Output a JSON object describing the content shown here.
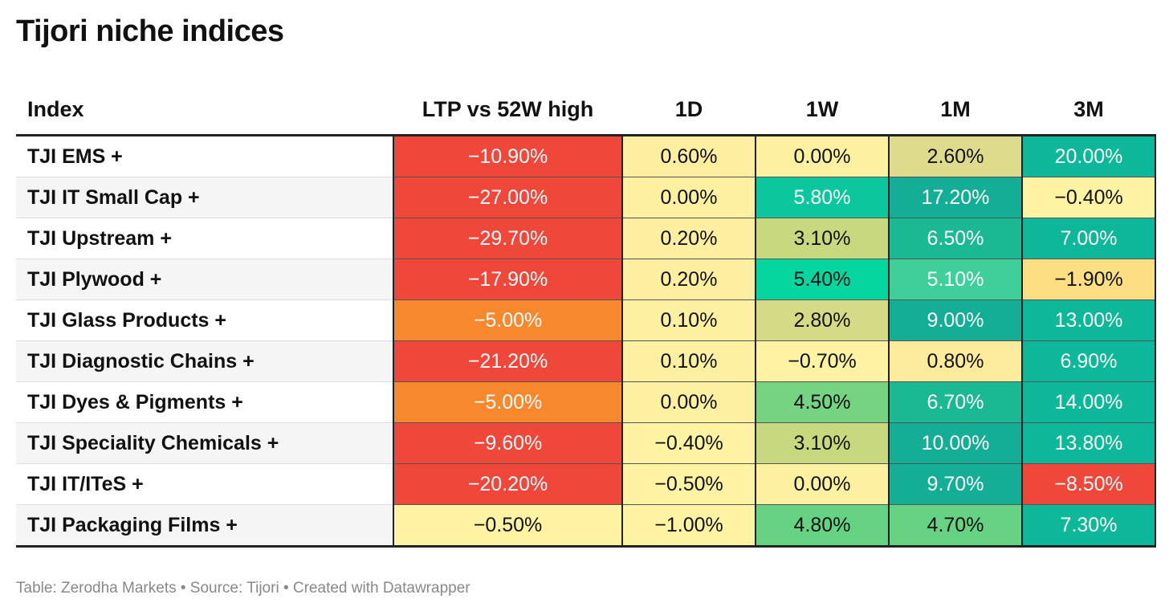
{
  "title": "Tijori niche indices",
  "footer": "Table: Zerodha Markets • Source: Tijori • Created with Datawrapper",
  "chart_data": {
    "type": "table",
    "title": "Tijori niche indices",
    "columns": [
      "Index",
      "LTP vs 52W high",
      "1D",
      "1W",
      "1M",
      "3M"
    ],
    "rows": [
      {
        "index": "TJI EMS +",
        "values": [
          "−10.90%",
          "0.60%",
          "0.00%",
          "2.60%",
          "20.00%"
        ]
      },
      {
        "index": "TJI IT Small Cap +",
        "values": [
          "−27.00%",
          "0.00%",
          "5.80%",
          "17.20%",
          "−0.40%"
        ]
      },
      {
        "index": "TJI Upstream +",
        "values": [
          "−29.70%",
          "0.20%",
          "3.10%",
          "6.50%",
          "7.00%"
        ]
      },
      {
        "index": "TJI Plywood +",
        "values": [
          "−17.90%",
          "0.20%",
          "5.40%",
          "5.10%",
          "−1.90%"
        ]
      },
      {
        "index": "TJI Glass Products +",
        "values": [
          "−5.00%",
          "0.10%",
          "2.80%",
          "9.00%",
          "13.00%"
        ]
      },
      {
        "index": "TJI Diagnostic Chains +",
        "values": [
          "−21.20%",
          "0.10%",
          "−0.70%",
          "0.80%",
          "6.90%"
        ]
      },
      {
        "index": "TJI Dyes & Pigments +",
        "values": [
          "−5.00%",
          "0.00%",
          "4.50%",
          "6.70%",
          "14.00%"
        ]
      },
      {
        "index": "TJI Speciality Chemicals +",
        "values": [
          "−9.60%",
          "−0.40%",
          "3.10%",
          "10.00%",
          "13.80%"
        ]
      },
      {
        "index": "TJI IT/ITeS +",
        "values": [
          "−20.20%",
          "−0.50%",
          "0.00%",
          "9.70%",
          "−8.50%"
        ]
      },
      {
        "index": "TJI Packaging Films +",
        "values": [
          "−0.50%",
          "−1.00%",
          "4.80%",
          "4.70%",
          "7.30%"
        ]
      }
    ],
    "cell_colors": [
      [
        "#ef473a",
        "#fdeea0",
        "#fdf0a0",
        "#dedc8c",
        "#0db89a"
      ],
      [
        "#ef473a",
        "#fdf0a0",
        "#0cc79d",
        "#13ae95",
        "#fdf3a3"
      ],
      [
        "#ef473a",
        "#fdef9f",
        "#c7d87e",
        "#1bb894",
        "#0db89a"
      ],
      [
        "#ef473a",
        "#fdef9f",
        "#05d6a0",
        "#3fd099",
        "#fdde82"
      ],
      [
        "#f8882e",
        "#fdf0a0",
        "#d5da87",
        "#13ae95",
        "#0db89a"
      ],
      [
        "#ef473a",
        "#fdf0a0",
        "#fdf3a3",
        "#fdeb9c",
        "#0db89a"
      ],
      [
        "#f8882e",
        "#fdf0a0",
        "#76d381",
        "#1bb894",
        "#0db89a"
      ],
      [
        "#ef473a",
        "#fdf3a3",
        "#c7d87e",
        "#13ae95",
        "#0db89a"
      ],
      [
        "#ef473a",
        "#fdf3a3",
        "#fdf0a0",
        "#13ae95",
        "#ef473a"
      ],
      [
        "#fdf3a3",
        "#fdf3a3",
        "#66d384",
        "#66d384",
        "#0db89a"
      ]
    ],
    "light_text": [
      [
        true,
        false,
        false,
        false,
        true
      ],
      [
        true,
        false,
        true,
        true,
        false
      ],
      [
        true,
        false,
        false,
        true,
        true
      ],
      [
        true,
        false,
        false,
        true,
        false
      ],
      [
        true,
        false,
        false,
        true,
        true
      ],
      [
        true,
        false,
        false,
        false,
        true
      ],
      [
        true,
        false,
        false,
        true,
        true
      ],
      [
        true,
        false,
        false,
        true,
        true
      ],
      [
        true,
        false,
        false,
        true,
        true
      ],
      [
        false,
        false,
        false,
        false,
        true
      ]
    ]
  }
}
